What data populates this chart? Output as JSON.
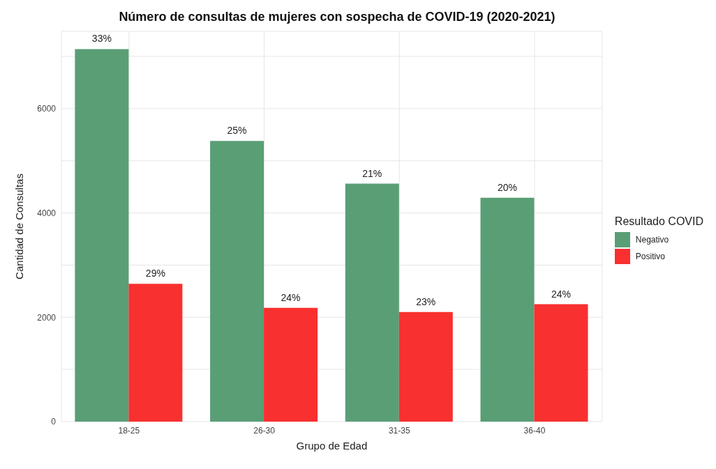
{
  "chart_data": {
    "type": "bar",
    "title": "Número de consultas de mujeres con sospecha de COVID-19 (2020-2021)",
    "xlabel": "Grupo de Edad",
    "ylabel": "Cantidad de Consultas",
    "legend_title": "Resultado COVID",
    "categories": [
      "18-25",
      "26-30",
      "31-35",
      "36-40"
    ],
    "series": [
      {
        "name": "Negativo",
        "color": "#5a9e76",
        "values": [
          7140,
          5380,
          4560,
          4290
        ]
      },
      {
        "name": "Positivo",
        "color": "#f8302f",
        "values": [
          2640,
          2180,
          2100,
          2250
        ]
      }
    ],
    "annotations": [
      {
        "text": "33%",
        "x": "18-25",
        "y": 7140
      },
      {
        "text": "29%",
        "x": "18-25",
        "y": 2640
      },
      {
        "text": "25%",
        "x": "26-30",
        "y": 5380
      },
      {
        "text": "24%",
        "x": "26-30",
        "y": 2180
      },
      {
        "text": "21%",
        "x": "31-35",
        "y": 4560
      },
      {
        "text": "23%",
        "x": "31-35",
        "y": 2100
      },
      {
        "text": "20%",
        "x": "36-40",
        "y": 4290
      },
      {
        "text": "24%",
        "x": "36-40",
        "y": 2250
      }
    ],
    "ylim": [
      0,
      7480
    ],
    "yticks": [
      0,
      {
        "value": 1000,
        "label": null
      },
      2000,
      {
        "value": 3000,
        "label": null
      },
      4000,
      {
        "value": 5000,
        "label": null
      },
      6000,
      {
        "value": 7000,
        "label": null
      }
    ],
    "grid": true,
    "legend": "right"
  }
}
